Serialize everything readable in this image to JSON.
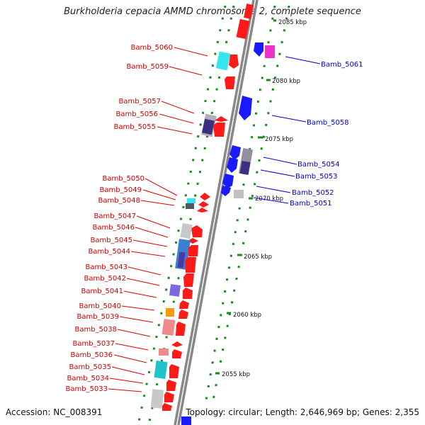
{
  "title": "Burkholderia cepacia AMMD chromosome 2, complete sequence",
  "footer": {
    "accession": "Accession: NC_008391",
    "summary": "Topology: circular; Length: 2,646,969 bp; Genes: 2,355"
  },
  "colors": {
    "forward_label": "#cc0000",
    "reverse_label": "#0000cc",
    "backbone": "#999999",
    "tick": "#1a8a1a"
  },
  "scale_labels": [
    "2085 kbp",
    "2080 kbp",
    "2075 kbp",
    "2070 kbp",
    "2065 kbp",
    "2060 kbp",
    "2055 kbp"
  ],
  "forward_genes": [
    "Bamb_5060",
    "Bamb_5059",
    "Bamb_5057",
    "Bamb_5056",
    "Bamb_5055",
    "Bamb_5050",
    "Bamb_5049",
    "Bamb_5048",
    "Bamb_5047",
    "Bamb_5046",
    "Bamb_5045",
    "Bamb_5044",
    "Bamb_5043",
    "Bamb_5042",
    "Bamb_5041",
    "Bamb_5040",
    "Bamb_5039",
    "Bamb_5038",
    "Bamb_5037",
    "Bamb_5036",
    "Bamb_5035",
    "Bamb_5034",
    "Bamb_5033"
  ],
  "reverse_genes": [
    "Bamb_5061",
    "Bamb_5058",
    "Bamb_5054",
    "Bamb_5053",
    "Bamb_5052",
    "Bamb_5051"
  ]
}
